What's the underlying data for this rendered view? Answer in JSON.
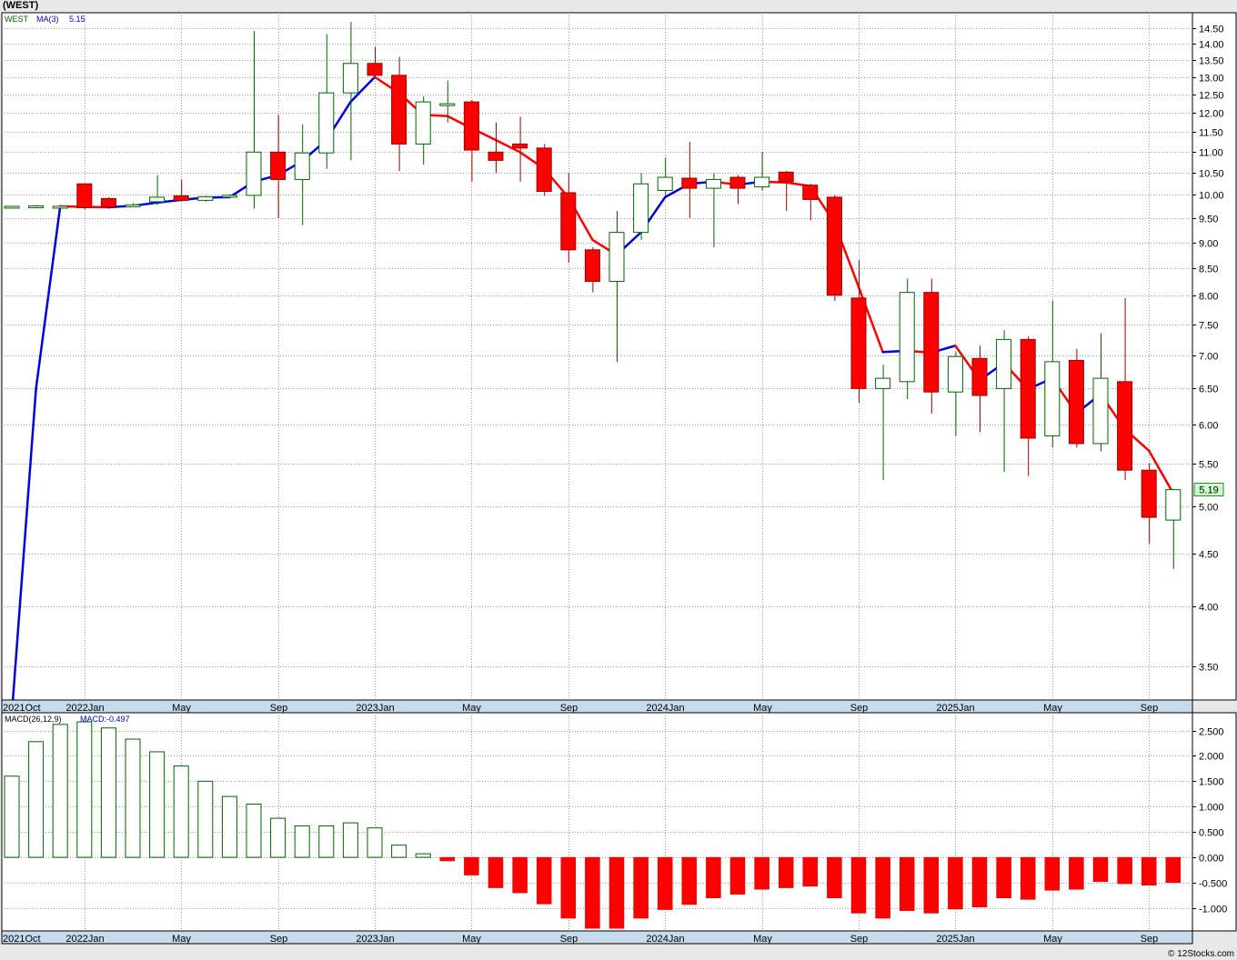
{
  "header": {
    "title": "(WEST)",
    "credit": "© 12Stocks.com"
  },
  "legend": {
    "symbol": "WEST",
    "ma_label": "MA(3)",
    "ma_value": "5.15",
    "macd_label": "MACD(26,12,9)",
    "macd_value_label": "MACD:-0.497"
  },
  "colors": {
    "up": "#006400",
    "down": "#ff0000",
    "ma_up": "#0000dd",
    "ma_down": "#ff0000",
    "legend_symbol": "#006400",
    "legend_ma": "#0000cc",
    "last_label_bg": "#ccffcc"
  },
  "chart_data": [
    {
      "type": "candlestick",
      "name": "price",
      "scale": "log",
      "ylim": [
        3.25,
        15.0
      ],
      "y_ticks": [
        "14.50",
        "14.00",
        "13.50",
        "13.00",
        "12.50",
        "12.00",
        "11.50",
        "11.00",
        "10.50",
        "10.00",
        "9.50",
        "9.00",
        "8.50",
        "8.00",
        "7.50",
        "7.00",
        "6.50",
        "6.00",
        "5.50",
        "5.00",
        "4.50",
        "4.00",
        "3.50"
      ],
      "x_labels": [
        {
          "label": "2021Oct",
          "index": 0
        },
        {
          "label": "2022Jan",
          "index": 3
        },
        {
          "label": "May",
          "index": 7
        },
        {
          "label": "Sep",
          "index": 11
        },
        {
          "label": "2023Jan",
          "index": 15
        },
        {
          "label": "May",
          "index": 19
        },
        {
          "label": "Sep",
          "index": 23
        },
        {
          "label": "2024Jan",
          "index": 27
        },
        {
          "label": "May",
          "index": 31
        },
        {
          "label": "Sep",
          "index": 35
        },
        {
          "label": "2025Jan",
          "index": 39
        },
        {
          "label": "May",
          "index": 43
        },
        {
          "label": "Sep",
          "index": 47
        }
      ],
      "last_price_label": "5.19",
      "candles": [
        {
          "o": 9.75,
          "h": 9.76,
          "l": 9.74,
          "c": 9.75
        },
        {
          "o": 9.75,
          "h": 9.78,
          "l": 9.72,
          "c": 9.76
        },
        {
          "o": 9.75,
          "h": 9.76,
          "l": 9.74,
          "c": 9.75
        },
        {
          "o": 10.25,
          "h": 10.26,
          "l": 9.68,
          "c": 9.72
        },
        {
          "o": 9.92,
          "h": 9.95,
          "l": 9.7,
          "c": 9.74
        },
        {
          "o": 9.75,
          "h": 9.82,
          "l": 9.73,
          "c": 9.78
        },
        {
          "o": 9.85,
          "h": 10.45,
          "l": 9.78,
          "c": 9.95
        },
        {
          "o": 9.98,
          "h": 10.35,
          "l": 9.86,
          "c": 9.88
        },
        {
          "o": 9.88,
          "h": 9.98,
          "l": 9.85,
          "c": 9.96
        },
        {
          "o": 9.97,
          "h": 10.02,
          "l": 9.93,
          "c": 9.99
        },
        {
          "o": 9.99,
          "h": 14.4,
          "l": 9.7,
          "c": 11.0
        },
        {
          "o": 11.0,
          "h": 11.95,
          "l": 9.5,
          "c": 10.35
        },
        {
          "o": 10.35,
          "h": 11.7,
          "l": 9.35,
          "c": 10.98
        },
        {
          "o": 10.98,
          "h": 14.3,
          "l": 10.6,
          "c": 12.55
        },
        {
          "o": 12.55,
          "h": 14.7,
          "l": 10.8,
          "c": 13.4
        },
        {
          "o": 13.4,
          "h": 13.9,
          "l": 12.95,
          "c": 13.05
        },
        {
          "o": 13.05,
          "h": 13.6,
          "l": 10.55,
          "c": 11.2
        },
        {
          "o": 11.2,
          "h": 12.45,
          "l": 10.7,
          "c": 12.3
        },
        {
          "o": 12.2,
          "h": 12.9,
          "l": 11.75,
          "c": 12.25
        },
        {
          "o": 12.3,
          "h": 12.35,
          "l": 10.3,
          "c": 11.05
        },
        {
          "o": 11.0,
          "h": 11.75,
          "l": 10.5,
          "c": 10.8
        },
        {
          "o": 11.2,
          "h": 11.9,
          "l": 10.3,
          "c": 11.1
        },
        {
          "o": 11.1,
          "h": 11.2,
          "l": 9.98,
          "c": 10.08
        },
        {
          "o": 10.05,
          "h": 10.5,
          "l": 8.6,
          "c": 8.85
        },
        {
          "o": 8.85,
          "h": 8.9,
          "l": 8.05,
          "c": 8.25
        },
        {
          "o": 8.25,
          "h": 9.65,
          "l": 6.9,
          "c": 9.2
        },
        {
          "o": 9.2,
          "h": 10.5,
          "l": 9.05,
          "c": 10.25
        },
        {
          "o": 10.1,
          "h": 10.85,
          "l": 10.0,
          "c": 10.4
        },
        {
          "o": 10.38,
          "h": 11.25,
          "l": 9.5,
          "c": 10.15
        },
        {
          "o": 10.15,
          "h": 10.5,
          "l": 8.9,
          "c": 10.35
        },
        {
          "o": 10.4,
          "h": 10.45,
          "l": 9.8,
          "c": 10.15
        },
        {
          "o": 10.18,
          "h": 11.0,
          "l": 10.1,
          "c": 10.4
        },
        {
          "o": 10.52,
          "h": 10.55,
          "l": 9.65,
          "c": 10.3
        },
        {
          "o": 10.22,
          "h": 10.25,
          "l": 9.45,
          "c": 9.9
        },
        {
          "o": 9.95,
          "h": 10.0,
          "l": 7.9,
          "c": 8.0
        },
        {
          "o": 7.95,
          "h": 8.65,
          "l": 6.3,
          "c": 6.5
        },
        {
          "o": 6.5,
          "h": 6.85,
          "l": 5.3,
          "c": 6.65
        },
        {
          "o": 6.6,
          "h": 8.3,
          "l": 6.35,
          "c": 8.05
        },
        {
          "o": 8.05,
          "h": 8.3,
          "l": 6.15,
          "c": 6.45
        },
        {
          "o": 6.45,
          "h": 7.05,
          "l": 5.85,
          "c": 6.98
        },
        {
          "o": 6.95,
          "h": 7.15,
          "l": 5.9,
          "c": 6.4
        },
        {
          "o": 6.5,
          "h": 7.4,
          "l": 5.4,
          "c": 7.25
        },
        {
          "o": 7.25,
          "h": 7.3,
          "l": 5.35,
          "c": 5.82
        },
        {
          "o": 5.85,
          "h": 7.9,
          "l": 5.7,
          "c": 6.9
        },
        {
          "o": 6.92,
          "h": 7.1,
          "l": 5.7,
          "c": 5.75
        },
        {
          "o": 5.75,
          "h": 7.35,
          "l": 5.65,
          "c": 6.65
        },
        {
          "o": 6.6,
          "h": 7.95,
          "l": 5.3,
          "c": 5.42
        },
        {
          "o": 5.42,
          "h": 5.5,
          "l": 4.6,
          "c": 4.88
        },
        {
          "o": 4.85,
          "h": 5.2,
          "l": 4.35,
          "c": 5.19
        }
      ],
      "ma3": [
        3.15,
        6.5,
        9.75,
        9.74,
        9.73,
        9.76,
        9.83,
        9.89,
        9.94,
        9.95,
        10.3,
        10.45,
        10.78,
        11.3,
        12.3,
        13.0,
        12.55,
        11.95,
        11.92,
        11.6,
        11.3,
        11.0,
        10.6,
        9.95,
        9.05,
        8.75,
        9.2,
        9.95,
        10.25,
        10.3,
        10.23,
        10.3,
        10.28,
        10.2,
        9.4,
        8.15,
        7.05,
        7.07,
        7.04,
        7.15,
        6.62,
        6.88,
        6.49,
        6.65,
        6.15,
        6.42,
        5.94,
        5.66,
        5.15
      ]
    },
    {
      "type": "bar",
      "name": "MACD(26,12,9)",
      "ylim": [
        -1.45,
        2.85
      ],
      "y_ticks": [
        "2.500",
        "2.000",
        "1.500",
        "1.000",
        "0.500",
        "0.000",
        "-0.500",
        "-1.000"
      ],
      "values": [
        1.6,
        2.28,
        2.62,
        2.67,
        2.55,
        2.33,
        2.08,
        1.8,
        1.5,
        1.2,
        1.05,
        0.77,
        0.62,
        0.62,
        0.68,
        0.58,
        0.24,
        0.07,
        -0.07,
        -0.35,
        -0.6,
        -0.7,
        -0.92,
        -1.2,
        -1.4,
        -1.4,
        -1.2,
        -1.03,
        -0.93,
        -0.8,
        -0.73,
        -0.63,
        -0.6,
        -0.57,
        -0.8,
        -1.1,
        -1.2,
        -1.05,
        -1.1,
        -1.02,
        -0.98,
        -0.8,
        -0.83,
        -0.65,
        -0.63,
        -0.48,
        -0.52,
        -0.55,
        -0.497
      ]
    }
  ]
}
